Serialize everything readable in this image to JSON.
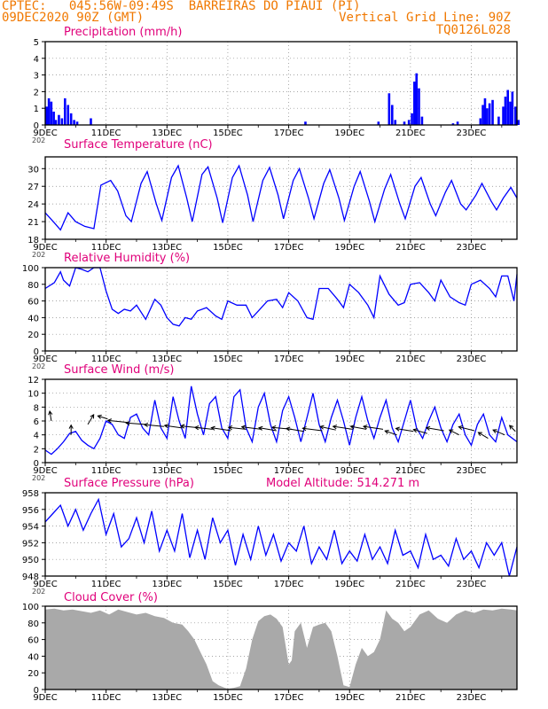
{
  "header": {
    "line1": "CPTEC:   045:56W-09:49S  BARREIRAS DO PIAUI (PI)",
    "line2_left": "09DEC2020 90Z (GMT)",
    "line2_right": "Vertical Grid Line: 90Z",
    "line3_right": "TQ0126L028",
    "model_altitude": "Model Altitude: 514.271 m",
    "color_header": "#f07800",
    "color_title": "#e0007a"
  },
  "x_axis": {
    "ticks": [
      {
        "label": "9DEC",
        "day": 0
      },
      {
        "label": "11DEC",
        "day": 2
      },
      {
        "label": "13DEC",
        "day": 4
      },
      {
        "label": "15DEC",
        "day": 6
      },
      {
        "label": "17DEC",
        "day": 8
      },
      {
        "label": "19DEC",
        "day": 10
      },
      {
        "label": "21DEC",
        "day": 12
      },
      {
        "label": "23DEC",
        "day": 14
      }
    ],
    "start_stub": "202"
  },
  "chart_data": [
    {
      "type": "bar",
      "title": "Precipitation (mm/h)",
      "ylim": [
        0,
        5
      ],
      "yticks": [
        0,
        1,
        2,
        3,
        4,
        5
      ],
      "color": "#0000ff",
      "points": [
        [
          0.05,
          1.1
        ],
        [
          0.12,
          1.6
        ],
        [
          0.2,
          1.4
        ],
        [
          0.28,
          0.8
        ],
        [
          0.35,
          0.3
        ],
        [
          0.45,
          0.6
        ],
        [
          0.55,
          0.4
        ],
        [
          0.65,
          1.6
        ],
        [
          0.75,
          1.2
        ],
        [
          0.85,
          0.7
        ],
        [
          0.95,
          0.3
        ],
        [
          1.05,
          0.2
        ],
        [
          1.5,
          0.4
        ],
        [
          8.55,
          0.2
        ],
        [
          10.95,
          0.2
        ],
        [
          11.3,
          1.9
        ],
        [
          11.4,
          1.2
        ],
        [
          11.5,
          0.3
        ],
        [
          11.8,
          0.2
        ],
        [
          11.95,
          0.3
        ],
        [
          12.05,
          0.7
        ],
        [
          12.13,
          2.6
        ],
        [
          12.2,
          3.1
        ],
        [
          12.28,
          2.2
        ],
        [
          12.38,
          0.5
        ],
        [
          13.4,
          0.1
        ],
        [
          13.55,
          0.2
        ],
        [
          14.3,
          0.4
        ],
        [
          14.38,
          1.2
        ],
        [
          14.45,
          1.6
        ],
        [
          14.52,
          1.0
        ],
        [
          14.6,
          1.3
        ],
        [
          14.7,
          1.5
        ],
        [
          14.9,
          0.5
        ],
        [
          15.05,
          1.1
        ],
        [
          15.12,
          1.7
        ],
        [
          15.2,
          2.1
        ],
        [
          15.28,
          1.4
        ],
        [
          15.35,
          2.0
        ],
        [
          15.45,
          1.1
        ],
        [
          15.55,
          0.3
        ]
      ]
    },
    {
      "type": "line",
      "title": "Surface Temperature (nC)",
      "ylim": [
        18,
        32
      ],
      "yticks": [
        18,
        21,
        24,
        27,
        30
      ],
      "color": "#0000ff",
      "x": [
        0.0,
        0.3,
        0.5,
        0.75,
        1.0,
        1.3,
        1.6,
        1.83,
        2.15,
        2.38,
        2.65,
        2.83,
        3.15,
        3.35,
        3.65,
        3.83,
        4.15,
        4.37,
        4.65,
        4.83,
        5.15,
        5.35,
        5.65,
        5.83,
        6.15,
        6.37,
        6.65,
        6.83,
        7.15,
        7.37,
        7.65,
        7.83,
        8.15,
        8.35,
        8.65,
        8.83,
        9.15,
        9.35,
        9.65,
        9.83,
        10.15,
        10.35,
        10.65,
        10.83,
        11.15,
        11.35,
        11.65,
        11.83,
        12.15,
        12.35,
        12.65,
        12.83,
        13.15,
        13.35,
        13.65,
        13.83,
        14.15,
        14.35,
        14.65,
        14.83,
        15.05,
        15.3,
        15.5
      ],
      "y": [
        22.5,
        20.8,
        19.6,
        22.5,
        21.0,
        20.2,
        19.8,
        27.2,
        28.0,
        26.2,
        22.0,
        21.0,
        27.5,
        29.5,
        24.0,
        21.2,
        28.5,
        30.5,
        25.0,
        21.0,
        29.0,
        30.3,
        25.0,
        20.8,
        28.5,
        30.5,
        25.5,
        21.0,
        28.0,
        30.2,
        25.5,
        21.5,
        28.0,
        30.0,
        25.0,
        21.5,
        27.5,
        29.8,
        25.0,
        21.2,
        27.0,
        29.5,
        24.5,
        21.0,
        26.5,
        29.0,
        24.0,
        21.5,
        27.0,
        28.5,
        24.0,
        22.0,
        26.0,
        28.0,
        24.0,
        23.0,
        25.5,
        27.5,
        24.5,
        23.0,
        25.0,
        26.8,
        25.0
      ]
    },
    {
      "type": "line",
      "title": "Relative Humidity (%)",
      "ylim": [
        0,
        100
      ],
      "yticks": [
        0,
        20,
        40,
        60,
        80,
        100
      ],
      "color": "#0000ff",
      "x": [
        0.0,
        0.3,
        0.5,
        0.6,
        0.8,
        1.0,
        1.2,
        1.4,
        1.6,
        1.8,
        2.0,
        2.2,
        2.4,
        2.6,
        2.8,
        3.0,
        3.3,
        3.6,
        3.8,
        4.0,
        4.2,
        4.4,
        4.6,
        4.8,
        5.0,
        5.3,
        5.6,
        5.8,
        6.0,
        6.3,
        6.6,
        6.8,
        7.0,
        7.3,
        7.6,
        7.8,
        8.0,
        8.3,
        8.6,
        8.8,
        9.0,
        9.3,
        9.6,
        9.8,
        10.0,
        10.3,
        10.6,
        10.8,
        11.0,
        11.3,
        11.6,
        11.8,
        12.0,
        12.3,
        12.6,
        12.8,
        13.0,
        13.3,
        13.6,
        13.8,
        14.0,
        14.3,
        14.6,
        14.8,
        15.0,
        15.2,
        15.4,
        15.5
      ],
      "y": [
        75,
        82,
        95,
        85,
        78,
        100,
        98,
        95,
        100,
        100,
        72,
        50,
        45,
        50,
        48,
        55,
        38,
        62,
        55,
        40,
        32,
        30,
        40,
        38,
        48,
        52,
        42,
        38,
        60,
        55,
        55,
        40,
        48,
        60,
        62,
        52,
        70,
        60,
        40,
        38,
        75,
        75,
        62,
        52,
        80,
        70,
        55,
        40,
        90,
        68,
        55,
        58,
        80,
        82,
        70,
        60,
        85,
        65,
        58,
        55,
        80,
        85,
        75,
        65,
        90,
        90,
        60,
        92
      ]
    },
    {
      "type": "line",
      "title": "Surface Wind (m/s)",
      "ylim": [
        0,
        12
      ],
      "yticks": [
        0,
        2,
        4,
        6,
        8,
        10,
        12
      ],
      "color": "#0000ff",
      "x": [
        0.0,
        0.2,
        0.4,
        0.6,
        0.8,
        1.0,
        1.2,
        1.4,
        1.6,
        1.8,
        2.0,
        2.2,
        2.4,
        2.6,
        2.8,
        3.0,
        3.2,
        3.4,
        3.6,
        3.8,
        4.0,
        4.2,
        4.4,
        4.6,
        4.8,
        5.0,
        5.2,
        5.4,
        5.6,
        5.8,
        6.0,
        6.2,
        6.4,
        6.6,
        6.8,
        7.0,
        7.2,
        7.4,
        7.6,
        7.8,
        8.0,
        8.2,
        8.4,
        8.6,
        8.8,
        9.0,
        9.2,
        9.4,
        9.6,
        9.8,
        10.0,
        10.2,
        10.4,
        10.6,
        10.8,
        11.0,
        11.2,
        11.4,
        11.6,
        11.8,
        12.0,
        12.2,
        12.4,
        12.6,
        12.8,
        13.0,
        13.2,
        13.4,
        13.6,
        13.8,
        14.0,
        14.2,
        14.4,
        14.6,
        14.8,
        15.0,
        15.2,
        15.5
      ],
      "y": [
        1.8,
        1.2,
        2.0,
        3.0,
        4.2,
        4.5,
        3.2,
        2.5,
        2.0,
        3.5,
        6.0,
        5.5,
        4.0,
        3.5,
        6.5,
        7.0,
        5.0,
        4.0,
        9.0,
        5.0,
        3.5,
        9.5,
        6.0,
        3.5,
        11.0,
        7.0,
        4.0,
        8.5,
        9.5,
        5.0,
        3.5,
        9.5,
        10.5,
        5.0,
        3.0,
        8.0,
        10.0,
        5.5,
        3.0,
        7.5,
        9.5,
        6.5,
        3.0,
        6.5,
        10.0,
        5.5,
        3.0,
        6.5,
        9.0,
        6.0,
        2.5,
        6.5,
        9.5,
        6.0,
        3.5,
        6.5,
        9.0,
        5.0,
        3.0,
        6.0,
        9.0,
        5.0,
        3.5,
        6.0,
        8.0,
        5.0,
        3.0,
        5.5,
        7.0,
        4.0,
        2.5,
        5.5,
        7.0,
        4.0,
        3.0,
        6.5,
        4.0,
        3.0
      ]
    },
    {
      "type": "line",
      "title": "Surface Pressure (hPa)",
      "ylim": [
        948,
        958
      ],
      "yticks": [
        948,
        950,
        952,
        954,
        956,
        958
      ],
      "color": "#0000ff",
      "x": [
        0.0,
        0.25,
        0.5,
        0.75,
        1.0,
        1.25,
        1.5,
        1.75,
        2.0,
        2.25,
        2.5,
        2.75,
        3.0,
        3.25,
        3.5,
        3.75,
        4.0,
        4.25,
        4.5,
        4.75,
        5.0,
        5.25,
        5.5,
        5.75,
        6.0,
        6.25,
        6.5,
        6.75,
        7.0,
        7.25,
        7.5,
        7.75,
        8.0,
        8.25,
        8.5,
        8.75,
        9.0,
        9.25,
        9.5,
        9.75,
        10.0,
        10.25,
        10.5,
        10.75,
        11.0,
        11.25,
        11.5,
        11.75,
        12.0,
        12.25,
        12.5,
        12.75,
        13.0,
        13.25,
        13.5,
        13.75,
        14.0,
        14.25,
        14.5,
        14.75,
        15.0,
        15.25,
        15.5
      ],
      "y": [
        954.5,
        955.5,
        956.5,
        954.0,
        956.0,
        953.5,
        955.5,
        957.2,
        953.0,
        955.5,
        951.5,
        952.5,
        955.0,
        952.0,
        955.8,
        951.0,
        953.5,
        951.0,
        955.5,
        950.2,
        953.5,
        950.0,
        955.0,
        952.0,
        953.5,
        949.3,
        953.0,
        950.0,
        954.0,
        950.5,
        953.0,
        949.8,
        952.0,
        951.0,
        954.0,
        949.5,
        951.5,
        950.0,
        953.5,
        949.5,
        951.0,
        949.8,
        953.0,
        950.0,
        951.5,
        949.5,
        953.5,
        950.5,
        951.0,
        949.0,
        953.0,
        950.0,
        950.5,
        949.2,
        952.5,
        950.0,
        951.0,
        949.0,
        952.0,
        950.5,
        952.0,
        948.0,
        951.5
      ]
    },
    {
      "type": "area",
      "title": "Cloud Cover (%)",
      "ylim": [
        0,
        100
      ],
      "yticks": [
        0,
        20,
        40,
        60,
        80,
        100
      ],
      "color": "#a9a9a9",
      "x": [
        0.0,
        0.3,
        0.6,
        0.9,
        1.2,
        1.5,
        1.8,
        2.1,
        2.4,
        2.7,
        3.0,
        3.3,
        3.6,
        3.9,
        4.2,
        4.5,
        4.7,
        4.9,
        5.1,
        5.3,
        5.5,
        5.7,
        5.9,
        6.0,
        6.2,
        6.4,
        6.6,
        6.8,
        7.0,
        7.2,
        7.4,
        7.6,
        7.8,
        8.0,
        8.1,
        8.2,
        8.4,
        8.6,
        8.8,
        9.0,
        9.2,
        9.4,
        9.6,
        9.8,
        10.0,
        10.2,
        10.4,
        10.6,
        10.8,
        11.0,
        11.2,
        11.4,
        11.6,
        11.8,
        12.0,
        12.3,
        12.6,
        12.9,
        13.2,
        13.5,
        13.8,
        14.1,
        14.4,
        14.7,
        15.0,
        15.3,
        15.5
      ],
      "y": [
        96,
        97,
        95,
        96,
        94,
        92,
        95,
        90,
        96,
        93,
        90,
        92,
        88,
        86,
        80,
        78,
        70,
        60,
        45,
        30,
        10,
        5,
        2,
        1,
        2,
        4,
        25,
        60,
        82,
        88,
        90,
        85,
        75,
        30,
        35,
        70,
        80,
        50,
        75,
        78,
        80,
        70,
        40,
        5,
        3,
        30,
        50,
        40,
        45,
        60,
        95,
        85,
        80,
        70,
        75,
        90,
        95,
        85,
        80,
        90,
        95,
        92,
        96,
        95,
        97,
        96,
        95
      ]
    }
  ],
  "wind_arrows": {
    "color": "#000000",
    "items": [
      [
        0.2,
        6.0,
        -0.08,
        1.0
      ],
      [
        0.85,
        4.0,
        0.0,
        1.0
      ],
      [
        1.4,
        5.5,
        0.3,
        1.0
      ],
      [
        2.05,
        6.3,
        -0.5,
        0.3
      ],
      [
        2.7,
        5.8,
        -1.0,
        0.2
      ],
      [
        3.3,
        5.5,
        -1.0,
        0.15
      ],
      [
        3.9,
        5.2,
        -1.0,
        0.2
      ],
      [
        4.5,
        5.0,
        -0.9,
        0.25
      ],
      [
        5.1,
        5.0,
        -1.0,
        0.2
      ],
      [
        5.5,
        4.8,
        -0.9,
        0.2
      ],
      [
        6.1,
        4.6,
        -1.0,
        0.3
      ],
      [
        6.6,
        4.8,
        -0.9,
        0.2
      ],
      [
        7.1,
        4.8,
        -1.0,
        0.25
      ],
      [
        7.6,
        4.6,
        -0.9,
        0.3
      ],
      [
        8.1,
        4.8,
        -1.0,
        0.2
      ],
      [
        8.5,
        4.5,
        -0.9,
        0.3
      ],
      [
        9.1,
        4.6,
        -1.0,
        0.25
      ],
      [
        9.55,
        4.7,
        -0.8,
        0.35
      ],
      [
        10.1,
        4.8,
        -1.0,
        0.3
      ],
      [
        10.55,
        4.8,
        -0.8,
        0.3
      ],
      [
        11.1,
        4.8,
        -1.0,
        0.3
      ],
      [
        11.55,
        4.0,
        -0.6,
        0.4
      ],
      [
        12.1,
        4.5,
        -0.9,
        0.3
      ],
      [
        12.55,
        4.2,
        -0.7,
        0.4
      ],
      [
        13.1,
        4.6,
        -0.9,
        0.3
      ],
      [
        13.6,
        4.0,
        -0.5,
        0.5
      ],
      [
        14.1,
        4.6,
        -0.8,
        0.4
      ],
      [
        14.55,
        3.5,
        -0.5,
        0.6
      ],
      [
        15.1,
        4.0,
        -0.6,
        0.5
      ],
      [
        15.45,
        4.5,
        -0.3,
        0.6
      ]
    ]
  }
}
